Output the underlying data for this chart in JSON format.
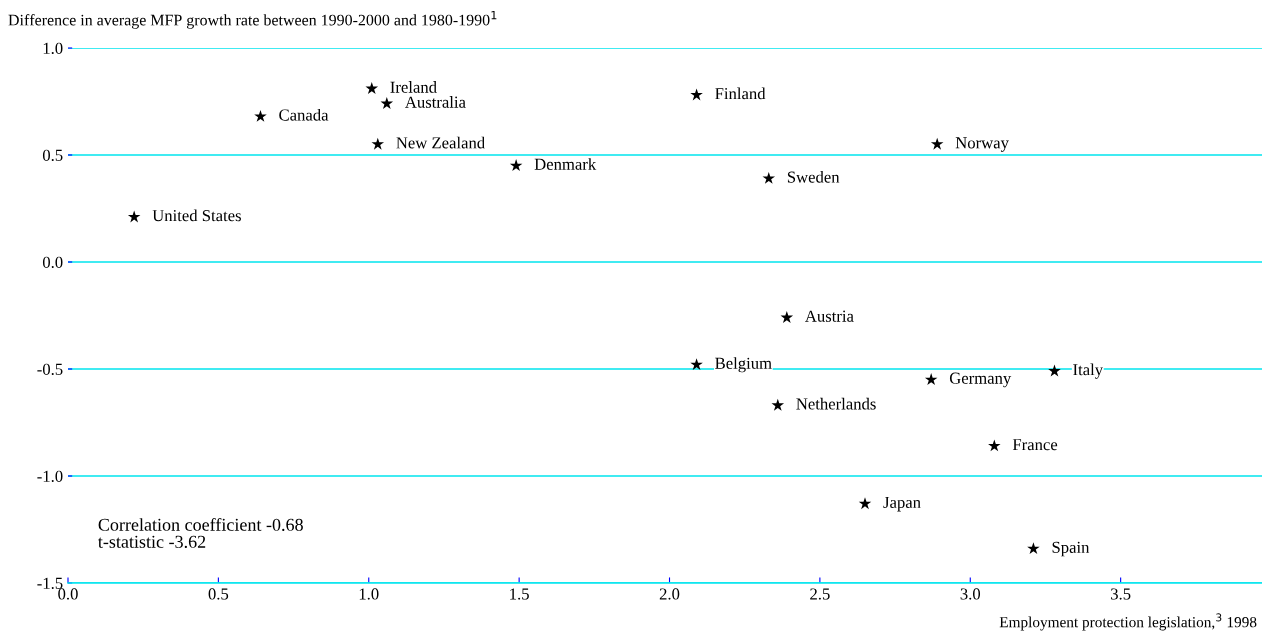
{
  "chart_data": {
    "type": "scatter",
    "ylabel": "Difference in average MFP growth rate between 1990-2000 and 1980-1990$^{1}$",
    "xlabel": "Employment protection legislation,$^{3}$ 1998",
    "x": [
      0.22,
      0.64,
      1.01,
      1.06,
      1.03,
      1.49,
      2.09,
      2.33,
      2.89,
      2.39,
      2.09,
      2.87,
      3.28,
      2.36,
      3.08,
      2.65,
      3.21
    ],
    "series": [
      {
        "color": "#000000",
        "values": [
          0.21,
          0.68,
          0.81,
          0.74,
          0.55,
          0.45,
          0.78,
          0.39,
          0.55,
          -0.26,
          -0.48,
          -0.55,
          -0.51,
          -0.67,
          -0.86,
          -1.13,
          -1.34
        ]
      }
    ],
    "marker": "star",
    "xlim": [
      0,
      3.97
    ],
    "ylim": [
      -1.5,
      1.0
    ],
    "xticks": [
      {
        "value": 0,
        "label": "0.0"
      },
      0.5,
      {
        "value": 1,
        "label": "1.0"
      },
      1.5,
      {
        "value": 2,
        "label": "2.0"
      },
      2.5,
      {
        "value": 3,
        "label": "3.0"
      },
      3.5
    ],
    "yticks": [
      {
        "value": -1.5,
        "label": "-1.5"
      },
      {
        "value": -1,
        "label": "-1.0"
      },
      {
        "value": -0.5,
        "label": "-0.5"
      },
      {
        "value": 0,
        "label": "0.0"
      },
      0.5,
      {
        "value": 1,
        "label": "1.0"
      }
    ],
    "grid": "y",
    "annotations": [
      {
        "text": "United States",
        "x": 0.22,
        "y": 0.21
      },
      {
        "text": "Canada",
        "x": 0.64,
        "y": 0.68
      },
      {
        "text": "Ireland",
        "x": 1.01,
        "y": 0.81
      },
      {
        "text": "Australia",
        "x": 1.06,
        "y": 0.74
      },
      {
        "text": "New Zealand",
        "x": 1.03,
        "y": 0.55
      },
      {
        "text": "Denmark",
        "x": 1.49,
        "y": 0.45
      },
      {
        "text": "Finland",
        "x": 2.09,
        "y": 0.78
      },
      {
        "text": "Sweden",
        "x": 2.33,
        "y": 0.39
      },
      {
        "text": "Norway",
        "x": 2.89,
        "y": 0.55
      },
      {
        "text": "Austria",
        "x": 2.39,
        "y": -0.26
      },
      {
        "text": "Belgium",
        "x": 2.09,
        "y": -0.48
      },
      {
        "text": "Germany",
        "x": 2.87,
        "y": -0.55
      },
      {
        "text": "Italy",
        "x": 3.28,
        "y": -0.51
      },
      {
        "text": "Netherlands",
        "x": 2.36,
        "y": -0.67
      },
      {
        "text": "France",
        "x": 3.08,
        "y": -0.86
      },
      {
        "text": "Japan",
        "x": 2.65,
        "y": -1.13
      },
      {
        "text": "Spain",
        "x": 3.21,
        "y": -1.34
      },
      "Correlation coefficient -0.68\nt-statistic -3.62"
    ]
  }
}
